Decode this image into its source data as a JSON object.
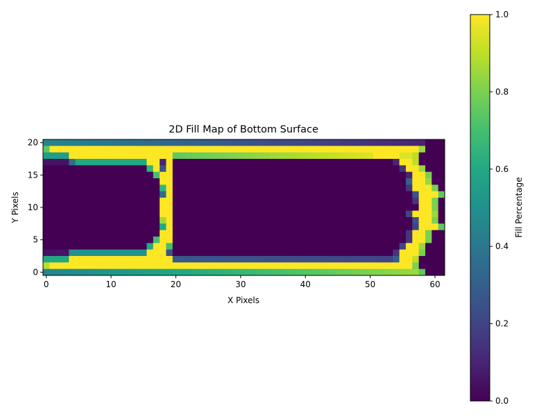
{
  "chart_data": {
    "type": "heatmap",
    "title": "2D Fill Map of Bottom Surface",
    "xlabel": "X Pixels",
    "ylabel": "Y Pixels",
    "colorbar_label": "Fill Percentage",
    "colormap": "viridis",
    "value_range": [
      0,
      1
    ],
    "grid": false,
    "grid_size": {
      "columns": 62,
      "rows": 21
    },
    "x_range": [
      -0.5,
      61.5
    ],
    "y_range": [
      -0.5,
      20.5
    ],
    "x_ticks": [
      "0",
      "10",
      "20",
      "30",
      "40",
      "50",
      "60"
    ],
    "y_ticks": [
      "0",
      "5",
      "10",
      "15",
      "20"
    ],
    "colorbar_ticks": [
      "0.0",
      "0.2",
      "0.4",
      "0.6",
      "0.8",
      "1.0"
    ],
    "rows": [
      {
        "y": 20,
        "segments": [
          [
            0,
            58,
            0.45,
            0.1
          ],
          [
            59,
            61,
            0.0
          ]
        ]
      },
      {
        "y": 19,
        "segments": [
          [
            0,
            0,
            0.75
          ],
          [
            1,
            57,
            1.0
          ],
          [
            58,
            58,
            0.85
          ],
          [
            59,
            61,
            0.0
          ]
        ]
      },
      {
        "y": 18,
        "segments": [
          [
            0,
            3,
            0.55
          ],
          [
            4,
            19,
            1.0
          ],
          [
            20,
            50,
            0.75,
            0.95
          ],
          [
            51,
            54,
            1.0
          ],
          [
            55,
            56,
            0.95
          ],
          [
            57,
            57,
            0.9
          ],
          [
            58,
            61,
            0.0
          ]
        ]
      },
      {
        "y": 17,
        "segments": [
          [
            0,
            3,
            0.05
          ],
          [
            4,
            4,
            0.35
          ],
          [
            5,
            15,
            0.6
          ],
          [
            16,
            17,
            1.0
          ],
          [
            18,
            18,
            0.1
          ],
          [
            19,
            19,
            1.0
          ],
          [
            20,
            53,
            0.0
          ],
          [
            54,
            54,
            0.1
          ],
          [
            55,
            56,
            1.0
          ],
          [
            57,
            57,
            0.9
          ],
          [
            58,
            61,
            0.0
          ]
        ]
      },
      {
        "y": 16,
        "segments": [
          [
            0,
            15,
            0.0
          ],
          [
            16,
            16,
            0.65
          ],
          [
            17,
            17,
            1.0
          ],
          [
            18,
            18,
            0.25
          ],
          [
            19,
            19,
            1.0
          ],
          [
            20,
            54,
            0.0
          ],
          [
            55,
            55,
            0.15
          ],
          [
            56,
            57,
            1.0
          ],
          [
            58,
            58,
            0.85
          ],
          [
            59,
            61,
            0.0
          ]
        ]
      },
      {
        "y": 15,
        "segments": [
          [
            0,
            16,
            0.0
          ],
          [
            17,
            17,
            0.7
          ],
          [
            18,
            18,
            1.0
          ],
          [
            19,
            19,
            1.0
          ],
          [
            20,
            55,
            0.0
          ],
          [
            56,
            56,
            0.1
          ],
          [
            57,
            58,
            1.0
          ],
          [
            59,
            59,
            0.8
          ],
          [
            60,
            61,
            0.0
          ]
        ]
      },
      {
        "y": 14,
        "segments": [
          [
            0,
            17,
            0.0
          ],
          [
            18,
            19,
            1.0
          ],
          [
            20,
            55,
            0.0
          ],
          [
            56,
            56,
            0.3
          ],
          [
            57,
            58,
            1.0
          ],
          [
            59,
            59,
            0.85
          ],
          [
            60,
            61,
            0.0
          ]
        ]
      },
      {
        "y": 13,
        "segments": [
          [
            0,
            17,
            0.0
          ],
          [
            18,
            18,
            0.65
          ],
          [
            19,
            19,
            1.0
          ],
          [
            20,
            55,
            0.0
          ],
          [
            56,
            56,
            0.15
          ],
          [
            57,
            59,
            1.0
          ],
          [
            60,
            60,
            0.8
          ],
          [
            61,
            61,
            0.0
          ]
        ]
      },
      {
        "y": 12,
        "segments": [
          [
            0,
            17,
            0.0
          ],
          [
            18,
            18,
            0.35
          ],
          [
            19,
            19,
            1.0
          ],
          [
            20,
            56,
            0.0
          ],
          [
            57,
            57,
            0.25
          ],
          [
            58,
            60,
            1.0
          ],
          [
            61,
            61,
            0.75
          ]
        ]
      },
      {
        "y": 11,
        "segments": [
          [
            0,
            17,
            0.0
          ],
          [
            18,
            19,
            1.0
          ],
          [
            20,
            56,
            0.0
          ],
          [
            57,
            57,
            0.15
          ],
          [
            58,
            59,
            1.0
          ],
          [
            60,
            60,
            0.8
          ],
          [
            61,
            61,
            0.0
          ]
        ]
      },
      {
        "y": 10,
        "segments": [
          [
            0,
            17,
            0.0
          ],
          [
            18,
            19,
            1.0
          ],
          [
            20,
            56,
            0.0
          ],
          [
            57,
            57,
            0.0
          ],
          [
            58,
            59,
            1.0
          ],
          [
            60,
            60,
            0.8
          ],
          [
            61,
            61,
            0.0
          ]
        ]
      },
      {
        "y": 9,
        "segments": [
          [
            0,
            17,
            0.0
          ],
          [
            18,
            19,
            1.0
          ],
          [
            20,
            55,
            0.0
          ],
          [
            56,
            56,
            0.2
          ],
          [
            57,
            59,
            1.0
          ],
          [
            60,
            60,
            0.85
          ],
          [
            61,
            61,
            0.0
          ]
        ]
      },
      {
        "y": 8,
        "segments": [
          [
            0,
            17,
            0.0
          ],
          [
            18,
            18,
            0.85
          ],
          [
            19,
            19,
            1.0
          ],
          [
            20,
            56,
            0.0
          ],
          [
            57,
            57,
            0.25
          ],
          [
            58,
            59,
            1.0
          ],
          [
            60,
            60,
            0.8
          ],
          [
            61,
            61,
            0.0
          ]
        ]
      },
      {
        "y": 7,
        "segments": [
          [
            0,
            17,
            0.0
          ],
          [
            18,
            18,
            0.6
          ],
          [
            19,
            19,
            1.0
          ],
          [
            20,
            56,
            0.0
          ],
          [
            57,
            57,
            0.2
          ],
          [
            58,
            60,
            1.0
          ],
          [
            61,
            61,
            0.75
          ]
        ]
      },
      {
        "y": 6,
        "segments": [
          [
            0,
            17,
            0.0
          ],
          [
            18,
            19,
            1.0
          ],
          [
            20,
            55,
            0.0
          ],
          [
            56,
            56,
            0.15
          ],
          [
            57,
            58,
            1.0
          ],
          [
            59,
            59,
            0.8
          ],
          [
            60,
            61,
            0.0
          ]
        ]
      },
      {
        "y": 5,
        "segments": [
          [
            0,
            16,
            0.0
          ],
          [
            17,
            17,
            0.7
          ],
          [
            18,
            19,
            1.0
          ],
          [
            20,
            55,
            0.0
          ],
          [
            56,
            56,
            0.15
          ],
          [
            57,
            58,
            1.0
          ],
          [
            59,
            59,
            0.8
          ],
          [
            60,
            61,
            0.0
          ]
        ]
      },
      {
        "y": 4,
        "segments": [
          [
            0,
            15,
            0.0
          ],
          [
            16,
            16,
            0.6
          ],
          [
            17,
            18,
            1.0
          ],
          [
            19,
            19,
            0.7
          ],
          [
            20,
            54,
            0.0
          ],
          [
            55,
            55,
            0.2
          ],
          [
            56,
            57,
            1.0
          ],
          [
            58,
            58,
            0.85
          ],
          [
            59,
            61,
            0.0
          ]
        ]
      },
      {
        "y": 3,
        "segments": [
          [
            0,
            3,
            0.05
          ],
          [
            4,
            15,
            0.5
          ],
          [
            16,
            18,
            1.0
          ],
          [
            19,
            19,
            0.25
          ],
          [
            20,
            53,
            0.0
          ],
          [
            54,
            54,
            0.15
          ],
          [
            55,
            57,
            1.0
          ],
          [
            58,
            58,
            0.8
          ],
          [
            59,
            61,
            0.0
          ]
        ]
      },
      {
        "y": 2,
        "segments": [
          [
            0,
            3,
            0.6
          ],
          [
            4,
            19,
            1.0
          ],
          [
            20,
            53,
            0.28,
            0.2
          ],
          [
            54,
            54,
            0.3
          ],
          [
            55,
            56,
            1.0
          ],
          [
            57,
            57,
            0.9
          ],
          [
            58,
            61,
            0.0
          ]
        ]
      },
      {
        "y": 1,
        "segments": [
          [
            0,
            0,
            0.9
          ],
          [
            1,
            56,
            1.0
          ],
          [
            57,
            57,
            0.8
          ],
          [
            58,
            61,
            0.0
          ]
        ]
      },
      {
        "y": 0,
        "segments": [
          [
            0,
            57,
            0.45,
            0.85
          ],
          [
            58,
            58,
            0.75
          ],
          [
            59,
            61,
            0.0
          ]
        ]
      }
    ]
  }
}
